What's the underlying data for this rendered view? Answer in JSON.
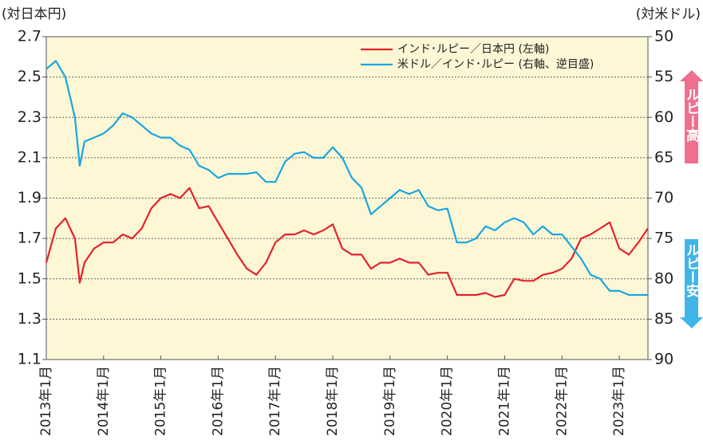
{
  "chart_data": {
    "type": "line",
    "left_axis_label": "(対日本円)",
    "right_axis_label": "(対米ドル)",
    "annotations": [
      "ルピー高",
      "ルピー安"
    ],
    "x": [
      "2013-01",
      "2013-03",
      "2013-05",
      "2013-07",
      "2013-08",
      "2013-09",
      "2013-11",
      "2014-01",
      "2014-03",
      "2014-05",
      "2014-07",
      "2014-09",
      "2014-11",
      "2015-01",
      "2015-03",
      "2015-05",
      "2015-07",
      "2015-09",
      "2015-11",
      "2016-01",
      "2016-03",
      "2016-05",
      "2016-07",
      "2016-09",
      "2016-11",
      "2017-01",
      "2017-03",
      "2017-05",
      "2017-07",
      "2017-09",
      "2017-11",
      "2018-01",
      "2018-03",
      "2018-05",
      "2018-07",
      "2018-09",
      "2018-11",
      "2019-01",
      "2019-03",
      "2019-05",
      "2019-07",
      "2019-09",
      "2019-11",
      "2020-01",
      "2020-03",
      "2020-05",
      "2020-07",
      "2020-09",
      "2020-11",
      "2021-01",
      "2021-03",
      "2021-05",
      "2021-07",
      "2021-09",
      "2021-11",
      "2022-01",
      "2022-03",
      "2022-05",
      "2022-07",
      "2022-09",
      "2022-11",
      "2023-01",
      "2023-03",
      "2023-05",
      "2023-07"
    ],
    "series": [
      {
        "name": "インド･ルピー／日本円 (左軸)",
        "color": "#e3232c",
        "values": [
          1.58,
          1.75,
          1.8,
          1.7,
          1.48,
          1.58,
          1.65,
          1.68,
          1.68,
          1.72,
          1.7,
          1.75,
          1.85,
          1.9,
          1.92,
          1.9,
          1.95,
          1.85,
          1.86,
          1.78,
          1.7,
          1.62,
          1.55,
          1.52,
          1.58,
          1.68,
          1.72,
          1.72,
          1.74,
          1.72,
          1.74,
          1.77,
          1.65,
          1.62,
          1.62,
          1.55,
          1.58,
          1.58,
          1.6,
          1.58,
          1.58,
          1.52,
          1.53,
          1.53,
          1.42,
          1.42,
          1.42,
          1.43,
          1.41,
          1.42,
          1.5,
          1.49,
          1.49,
          1.52,
          1.53,
          1.55,
          1.6,
          1.7,
          1.72,
          1.75,
          1.78,
          1.65,
          1.62,
          1.68,
          1.75
        ]
      },
      {
        "name": "米ドル／インド･ルピー (右軸、逆目盛)",
        "color": "#1aa6e0",
        "axis": "y2",
        "values": [
          54,
          53,
          55,
          60,
          66,
          63,
          62.5,
          62,
          61,
          59.5,
          60,
          61,
          62,
          62.5,
          62.5,
          63.5,
          64,
          66,
          66.5,
          67.5,
          67,
          67,
          67,
          66.8,
          68,
          68,
          65.5,
          64.5,
          64.3,
          65,
          65,
          63.7,
          65,
          67.5,
          68.7,
          72,
          71,
          70,
          69,
          69.5,
          69,
          71,
          71.5,
          71.3,
          75.5,
          75.5,
          75,
          73.5,
          74,
          73,
          72.5,
          73,
          74.5,
          73.5,
          74.5,
          74.5,
          76,
          77.5,
          79.5,
          80,
          81.5,
          81.5,
          82,
          82,
          82
        ]
      }
    ],
    "xticks": [
      {
        "value": "2013-01",
        "label": "2013年1月"
      },
      {
        "value": "2014-01",
        "label": "2014年1月"
      },
      {
        "value": "2015-01",
        "label": "2015年1月"
      },
      {
        "value": "2016-01",
        "label": "2016年1月"
      },
      {
        "value": "2017-01",
        "label": "2017年1月"
      },
      {
        "value": "2018-01",
        "label": "2018年1月"
      },
      {
        "value": "2019-01",
        "label": "2019年1月"
      },
      {
        "value": "2020-01",
        "label": "2020年1月"
      },
      {
        "value": "2021-01",
        "label": "2021年1月"
      },
      {
        "value": "2022-01",
        "label": "2022年1月"
      },
      {
        "value": "2023-01",
        "label": "2023年1月"
      }
    ],
    "xlim": [
      "2013-01",
      "2023-07"
    ],
    "ylim": [
      1.1,
      2.7
    ],
    "yticks": [
      1.1,
      1.3,
      1.5,
      1.7,
      1.9,
      2.1,
      2.3,
      2.5,
      2.7
    ],
    "y2lim": [
      90,
      50
    ],
    "y2ticks": [
      90,
      85,
      80,
      75,
      70,
      65,
      60,
      55,
      50
    ],
    "grid": true,
    "legend": "top-right"
  }
}
